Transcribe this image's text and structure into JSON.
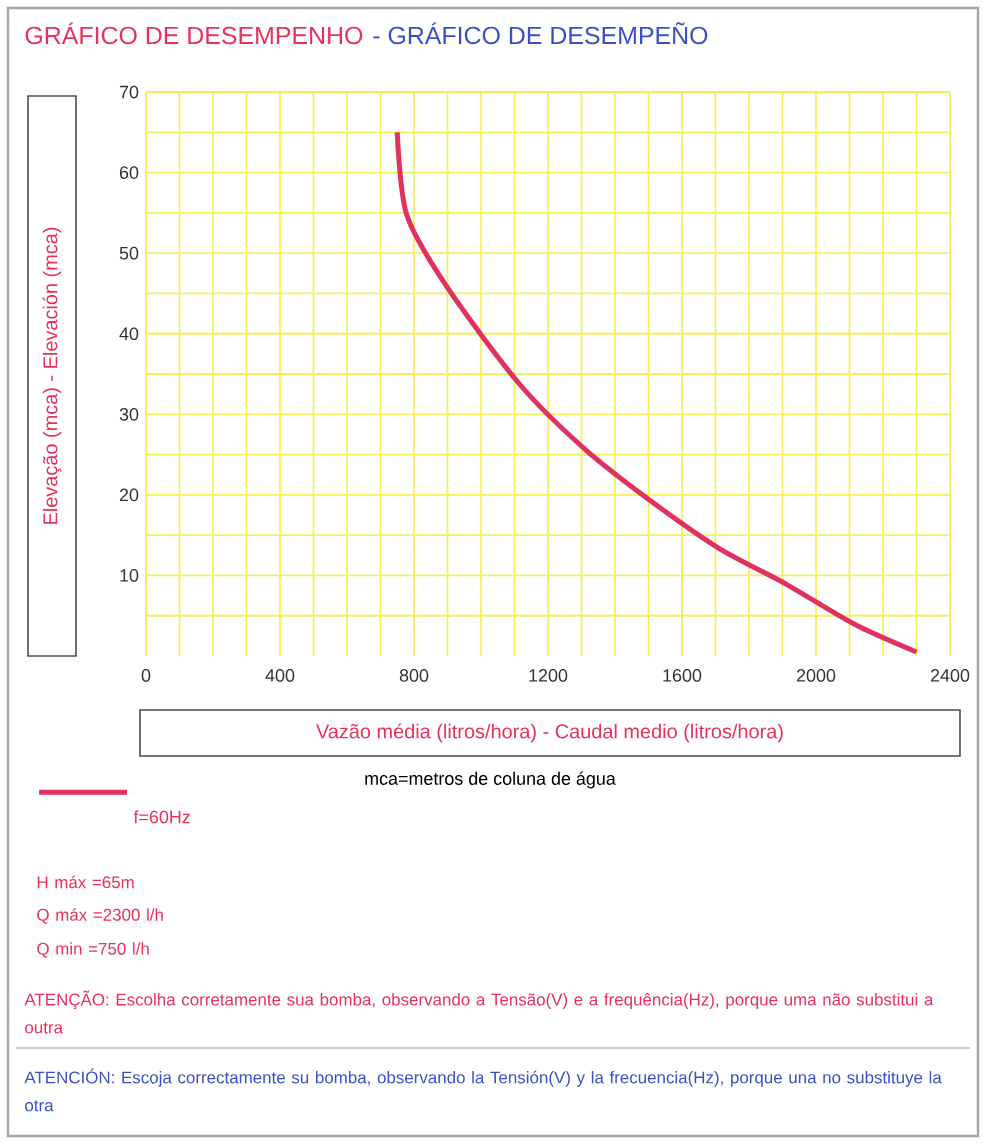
{
  "chart_data": {
    "type": "line",
    "title": "GRÁFICO DE DESEMPENHO",
    "subtitle": "- GRÁFICO DE DESEMPEÑO",
    "xlabel": "Vazão média (litros/hora) - Caudal medio (litros/hora)",
    "ylabel": "Elevação (mca) - Elevación (mca)",
    "x": [
      750,
      778,
      897,
      1116,
      1315,
      1515,
      1713,
      1912,
      2112,
      2300
    ],
    "series": [
      {
        "name": "f=60Hz",
        "color": "#e0315f",
        "values": [
          65,
          54.8,
          45.9,
          33.7,
          25.5,
          19,
          13.3,
          8.9,
          4,
          0.5
        ]
      }
    ],
    "xlim": [
      0,
      2400
    ],
    "ylim": [
      0,
      70
    ],
    "xticks": [
      0,
      {
        "value": 100,
        "label": null
      },
      {
        "value": 200,
        "label": null
      },
      {
        "value": 300,
        "label": null
      },
      400,
      {
        "value": 500,
        "label": null
      },
      {
        "value": 600,
        "label": null
      },
      {
        "value": 700,
        "label": null
      },
      800,
      {
        "value": 900,
        "label": null
      },
      {
        "value": 1000,
        "label": null
      },
      {
        "value": 1100,
        "label": null
      },
      1200,
      {
        "value": 1300,
        "label": null
      },
      {
        "value": 1400,
        "label": null
      },
      {
        "value": 1500,
        "label": null
      },
      1600,
      {
        "value": 1700,
        "label": null
      },
      {
        "value": 1800,
        "label": null
      },
      {
        "value": 1900,
        "label": null
      },
      2000,
      {
        "value": 2100,
        "label": null
      },
      {
        "value": 2200,
        "label": null
      },
      {
        "value": 2300,
        "label": null
      },
      2400
    ],
    "yticks": [
      {
        "value": 5,
        "label": null
      },
      10,
      {
        "value": 15,
        "label": null
      },
      20,
      {
        "value": 25,
        "label": null
      },
      30,
      {
        "value": 35,
        "label": null
      },
      40,
      {
        "value": 45,
        "label": null
      },
      50,
      {
        "value": 55,
        "label": null
      },
      60,
      {
        "value": 65,
        "label": null
      },
      70
    ],
    "grid": true,
    "legend": "bottom",
    "marker": "none",
    "line_style": "solid",
    "annotations": [
      "mca=metros de coluna de água",
      "H máx =65m",
      "Q máx =2300 l/h",
      "Q min =750 l/h",
      "ATENÇÃO: Escolha corretamente sua bomba, observando a Tensão(V) e a frequência(Hz), porque uma não substitui a outra",
      "ATENCIÓN: Escoja correctamente su bomba, observando la Tensión(V) y la frecuencia(Hz), porque una no substituye la otra"
    ]
  }
}
